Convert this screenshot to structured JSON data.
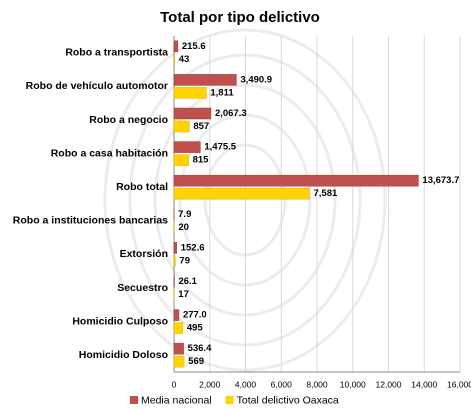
{
  "chart_data": {
    "type": "hbar",
    "title": "Total por tipo delictivo",
    "categories": [
      "Robo a transportista",
      "Robo de vehículo automotor",
      "Robo a negocio",
      "Robo a casa habitación",
      "Robo total",
      "Robo a instituciones bancarias",
      "Extorsión",
      "Secuestro",
      "Homicidio Culposo",
      "Homicidio Doloso"
    ],
    "series": [
      {
        "name": "Media nacional",
        "color": "#c0504d",
        "values": [
          215.6,
          3490.9,
          2067.3,
          1475.5,
          13673.7,
          7.9,
          152.6,
          26.1,
          277.0,
          536.4
        ],
        "value_labels": [
          "215.6",
          "3,490.9",
          "2,067.3",
          "1,475.5",
          "13,673.7",
          "7.9",
          "152.6",
          "26.1",
          "277.0",
          "536.4"
        ]
      },
      {
        "name": "Total delictivo Oaxaca",
        "color": "#ffd200",
        "values": [
          43,
          1811,
          857,
          815,
          7581,
          20,
          79,
          17,
          495,
          569
        ],
        "value_labels": [
          "43",
          "1,811",
          "857",
          "815",
          "7,581",
          "20",
          "79",
          "17",
          "495",
          "569"
        ]
      }
    ],
    "xlim": [
      0,
      16000
    ],
    "xticks": [
      0,
      {
        "value": 2000,
        "label": "2,000"
      },
      {
        "value": 4000,
        "label": "4,000"
      },
      {
        "value": 6000,
        "label": "6,000"
      },
      {
        "value": 8000,
        "label": "8,000"
      },
      {
        "value": 10000,
        "label": "10,000"
      },
      {
        "value": 12000,
        "label": "12,000"
      },
      {
        "value": 14000,
        "label": "14,000"
      },
      {
        "value": 16000,
        "label": "16,000"
      }
    ],
    "grid": true,
    "legend": "bottom"
  }
}
